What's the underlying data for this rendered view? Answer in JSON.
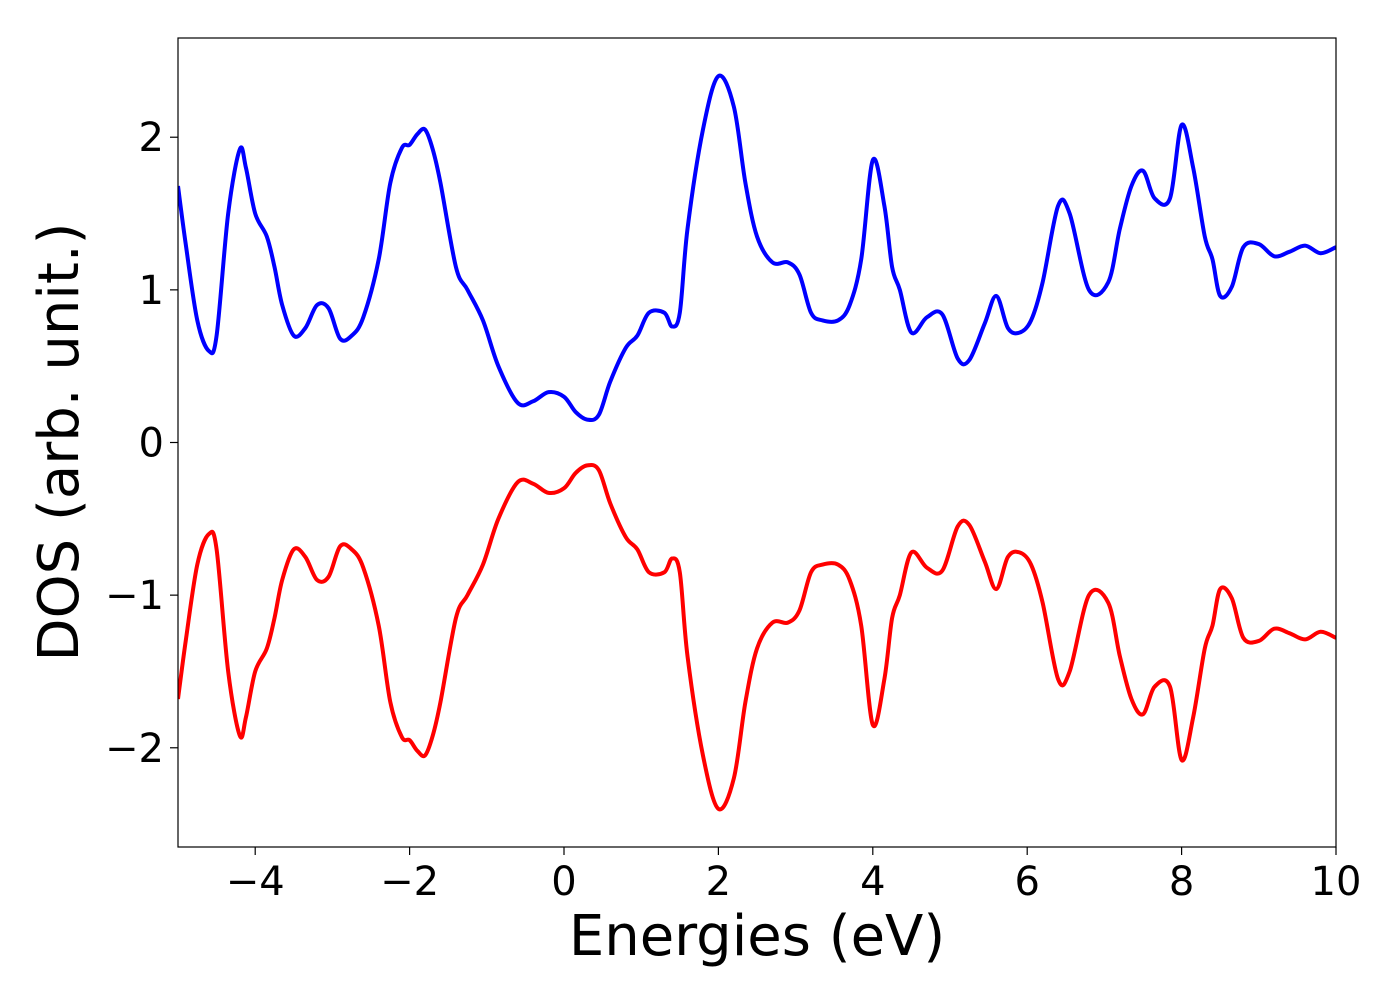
{
  "chart_data": {
    "type": "line",
    "title": "",
    "xlabel": "Energies (eV)",
    "ylabel": "DOS (arb. unit.)",
    "xlim": [
      -5,
      10
    ],
    "ylim": [
      -2.65,
      2.65
    ],
    "xticks": [
      -4,
      -2,
      0,
      2,
      4,
      6,
      8,
      10
    ],
    "xtick_labels": [
      "−4",
      "−2",
      "0",
      "2",
      "4",
      "6",
      "8",
      "10"
    ],
    "yticks": [
      -2,
      -1,
      0,
      1,
      2
    ],
    "ytick_labels": [
      "−2",
      "−1",
      "0",
      "1",
      "2"
    ],
    "grid": false,
    "series": [
      {
        "color": "#0000ff",
        "x": [
          -5.0,
          -4.9,
          -4.75,
          -4.6,
          -4.5,
          -4.35,
          -4.2,
          -4.12,
          -4.0,
          -3.85,
          -3.75,
          -3.65,
          -3.5,
          -3.35,
          -3.2,
          -3.05,
          -2.9,
          -2.75,
          -2.6,
          -2.4,
          -2.25,
          -2.1,
          -2.0,
          -1.9,
          -1.8,
          -1.7,
          -1.6,
          -1.4,
          -1.25,
          -1.05,
          -0.85,
          -0.6,
          -0.4,
          -0.2,
          0.0,
          0.15,
          0.3,
          0.45,
          0.6,
          0.8,
          0.95,
          1.1,
          1.3,
          1.4,
          1.5,
          1.6,
          1.8,
          2.0,
          2.2,
          2.35,
          2.5,
          2.7,
          2.9,
          3.05,
          3.2,
          3.35,
          3.55,
          3.7,
          3.85,
          4.0,
          4.15,
          4.25,
          4.35,
          4.5,
          4.7,
          4.9,
          5.1,
          5.25,
          5.45,
          5.6,
          5.75,
          5.9,
          6.05,
          6.2,
          6.4,
          6.55,
          6.8,
          7.05,
          7.2,
          7.35,
          7.5,
          7.65,
          7.85,
          8.0,
          8.15,
          8.3,
          8.4,
          8.5,
          8.65,
          8.8,
          9.0,
          9.2,
          9.4,
          9.6,
          9.8,
          10.0
        ],
        "y": [
          1.68,
          1.3,
          0.8,
          0.6,
          0.7,
          1.5,
          1.92,
          1.8,
          1.5,
          1.35,
          1.15,
          0.9,
          0.7,
          0.75,
          0.9,
          0.88,
          0.68,
          0.7,
          0.82,
          1.2,
          1.7,
          1.93,
          1.95,
          2.02,
          2.05,
          1.92,
          1.7,
          1.15,
          1.0,
          0.8,
          0.5,
          0.26,
          0.27,
          0.33,
          0.3,
          0.2,
          0.15,
          0.18,
          0.4,
          0.62,
          0.7,
          0.85,
          0.85,
          0.76,
          0.85,
          1.4,
          2.05,
          2.4,
          2.2,
          1.7,
          1.35,
          1.18,
          1.18,
          1.1,
          0.85,
          0.8,
          0.8,
          0.9,
          1.2,
          1.85,
          1.55,
          1.15,
          1.0,
          0.72,
          0.82,
          0.84,
          0.55,
          0.54,
          0.78,
          0.96,
          0.75,
          0.72,
          0.8,
          1.05,
          1.55,
          1.5,
          1.0,
          1.05,
          1.4,
          1.68,
          1.78,
          1.6,
          1.6,
          2.08,
          1.8,
          1.35,
          1.2,
          0.96,
          1.02,
          1.28,
          1.3,
          1.22,
          1.25,
          1.29,
          1.24,
          1.28
        ]
      },
      {
        "color": "#ff0000",
        "x": [
          -5.0,
          -4.9,
          -4.75,
          -4.6,
          -4.5,
          -4.35,
          -4.2,
          -4.12,
          -4.0,
          -3.85,
          -3.75,
          -3.65,
          -3.5,
          -3.35,
          -3.2,
          -3.05,
          -2.9,
          -2.75,
          -2.6,
          -2.4,
          -2.25,
          -2.1,
          -2.0,
          -1.9,
          -1.8,
          -1.7,
          -1.6,
          -1.4,
          -1.25,
          -1.05,
          -0.85,
          -0.6,
          -0.4,
          -0.2,
          0.0,
          0.15,
          0.3,
          0.45,
          0.6,
          0.8,
          0.95,
          1.1,
          1.3,
          1.4,
          1.5,
          1.6,
          1.8,
          2.0,
          2.2,
          2.35,
          2.5,
          2.7,
          2.9,
          3.05,
          3.2,
          3.35,
          3.55,
          3.7,
          3.85,
          4.0,
          4.15,
          4.25,
          4.35,
          4.5,
          4.7,
          4.9,
          5.1,
          5.25,
          5.45,
          5.6,
          5.75,
          5.9,
          6.05,
          6.2,
          6.4,
          6.55,
          6.8,
          7.05,
          7.2,
          7.35,
          7.5,
          7.65,
          7.85,
          8.0,
          8.15,
          8.3,
          8.4,
          8.5,
          8.65,
          8.8,
          9.0,
          9.2,
          9.4,
          9.6,
          9.8,
          10.0
        ],
        "y": [
          -1.68,
          -1.3,
          -0.8,
          -0.6,
          -0.7,
          -1.5,
          -1.92,
          -1.8,
          -1.5,
          -1.35,
          -1.15,
          -0.9,
          -0.7,
          -0.75,
          -0.9,
          -0.88,
          -0.68,
          -0.7,
          -0.82,
          -1.2,
          -1.7,
          -1.93,
          -1.95,
          -2.02,
          -2.05,
          -1.92,
          -1.7,
          -1.15,
          -1.0,
          -0.8,
          -0.5,
          -0.26,
          -0.27,
          -0.33,
          -0.3,
          -0.2,
          -0.15,
          -0.18,
          -0.4,
          -0.62,
          -0.7,
          -0.85,
          -0.85,
          -0.76,
          -0.85,
          -1.4,
          -2.05,
          -2.4,
          -2.2,
          -1.7,
          -1.35,
          -1.18,
          -1.18,
          -1.1,
          -0.85,
          -0.8,
          -0.8,
          -0.9,
          -1.2,
          -1.85,
          -1.55,
          -1.15,
          -1.0,
          -0.72,
          -0.82,
          -0.84,
          -0.55,
          -0.54,
          -0.78,
          -0.96,
          -0.75,
          -0.72,
          -0.8,
          -1.05,
          -1.55,
          -1.5,
          -1.0,
          -1.05,
          -1.4,
          -1.68,
          -1.78,
          -1.6,
          -1.6,
          -2.08,
          -1.8,
          -1.35,
          -1.2,
          -0.96,
          -1.02,
          -1.28,
          -1.3,
          -1.22,
          -1.25,
          -1.29,
          -1.24,
          -1.28
        ]
      }
    ]
  }
}
